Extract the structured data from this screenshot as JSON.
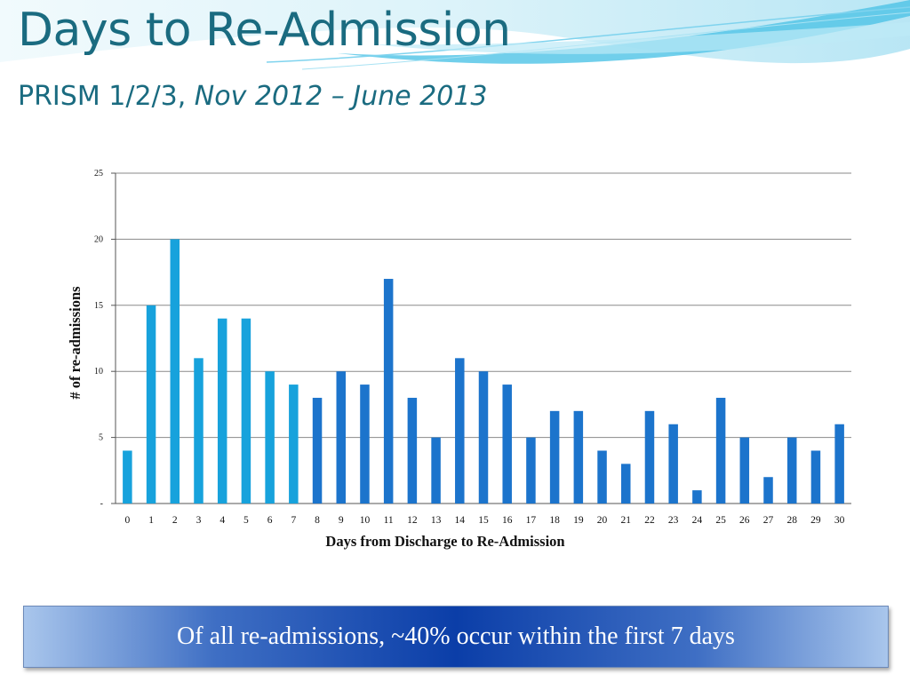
{
  "slide": {
    "title": "Days to Re-Admission",
    "subtitle_normal": "PRISM 1/2/3, ",
    "subtitle_italic": "Nov 2012 – June 2013",
    "callout": "Of all re-admissions, ~40% occur within the first 7 days"
  },
  "colors": {
    "title": "#1a6b80",
    "bar_first_week": "#17a2dc",
    "bar_later": "#1c74cc"
  },
  "chart_data": {
    "type": "bar",
    "title": "",
    "xlabel": "Days from Discharge to Re-Admission",
    "ylabel": "# of re-admissions",
    "categories": [
      "0",
      "1",
      "2",
      "3",
      "4",
      "5",
      "6",
      "7",
      "8",
      "9",
      "10",
      "11",
      "12",
      "13",
      "14",
      "15",
      "16",
      "17",
      "18",
      "19",
      "20",
      "21",
      "22",
      "23",
      "24",
      "25",
      "26",
      "27",
      "28",
      "29",
      "30"
    ],
    "values": [
      4,
      15,
      20,
      11,
      14,
      14,
      10,
      9,
      8,
      10,
      9,
      17,
      8,
      5,
      11,
      10,
      9,
      5,
      7,
      7,
      4,
      3,
      7,
      6,
      1,
      8,
      5,
      2,
      5,
      4,
      6
    ],
    "ylim": [
      0,
      25
    ],
    "yticks": [
      "-",
      "5",
      "10",
      "15",
      "20",
      "25"
    ],
    "grid": true,
    "legend": "none"
  }
}
